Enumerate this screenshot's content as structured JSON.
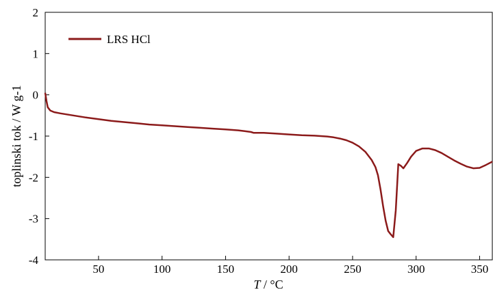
{
  "chart_data": {
    "type": "line",
    "title": "",
    "xlabel_var": "T",
    "xlabel_unit": " / °C",
    "ylabel": "toplinski tok / W g-1",
    "xlim": [
      8,
      360
    ],
    "ylim": [
      -4,
      2
    ],
    "xticks": [
      50,
      100,
      150,
      200,
      250,
      300,
      350
    ],
    "yticks": [
      -4,
      -3,
      -2,
      -1,
      0,
      1,
      2
    ],
    "grid": false,
    "legend_position": "top-left",
    "series": [
      {
        "name": "LRS HCl",
        "color": "#8b1a1a",
        "x": [
          8,
          9,
          10,
          12,
          15,
          20,
          30,
          40,
          50,
          60,
          70,
          80,
          90,
          100,
          110,
          120,
          130,
          140,
          150,
          160,
          165,
          170,
          172,
          175,
          180,
          190,
          200,
          210,
          220,
          230,
          235,
          240,
          245,
          250,
          255,
          260,
          265,
          268,
          270,
          272,
          274,
          276,
          278,
          280,
          282,
          284,
          286,
          288,
          290,
          293,
          296,
          300,
          305,
          310,
          315,
          320,
          325,
          330,
          335,
          340,
          345,
          350,
          355,
          360
        ],
        "y": [
          0.05,
          -0.15,
          -0.3,
          -0.38,
          -0.42,
          -0.45,
          -0.5,
          -0.55,
          -0.59,
          -0.63,
          -0.66,
          -0.69,
          -0.72,
          -0.74,
          -0.76,
          -0.78,
          -0.8,
          -0.82,
          -0.84,
          -0.86,
          -0.88,
          -0.9,
          -0.92,
          -0.92,
          -0.92,
          -0.94,
          -0.96,
          -0.98,
          -0.99,
          -1.01,
          -1.03,
          -1.06,
          -1.1,
          -1.16,
          -1.25,
          -1.38,
          -1.58,
          -1.75,
          -1.95,
          -2.3,
          -2.7,
          -3.05,
          -3.3,
          -3.38,
          -3.45,
          -2.8,
          -1.68,
          -1.72,
          -1.78,
          -1.65,
          -1.5,
          -1.36,
          -1.3,
          -1.3,
          -1.34,
          -1.41,
          -1.5,
          -1.59,
          -1.67,
          -1.74,
          -1.78,
          -1.77,
          -1.7,
          -1.62
        ]
      }
    ]
  }
}
